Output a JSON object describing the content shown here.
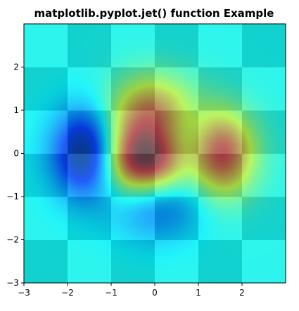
{
  "chart_data": {
    "type": "heatmap",
    "title": "matplotlib.pyplot.jet() function Example",
    "xlabel": "",
    "ylabel": "",
    "xlim": [
      -3,
      3
    ],
    "ylim": [
      -3,
      3
    ],
    "xticks": [
      -3,
      -2,
      -1,
      0,
      1,
      2
    ],
    "yticks": [
      -3,
      -2,
      -1,
      0,
      1,
      2
    ],
    "xtick_labels": [
      "−3",
      "−2",
      "−1",
      "0",
      "1",
      "2"
    ],
    "ytick_labels": [
      "−3",
      "−2",
      "−1",
      "0",
      "1",
      "2"
    ],
    "colormap": "jet",
    "grid": false,
    "layers": [
      {
        "kind": "checkerboard",
        "extent": [
          -3,
          3,
          -3,
          3
        ],
        "cell_size": 1,
        "colors": [
          "#138ea5",
          "#56e6f0"
        ]
      },
      {
        "kind": "surface",
        "function": "(1 - x/2 + x^5 + y^3) * exp(-x^2 - y^2)",
        "extent": [
          -3,
          3,
          -3,
          3
        ],
        "alpha": 0.6
      }
    ]
  }
}
